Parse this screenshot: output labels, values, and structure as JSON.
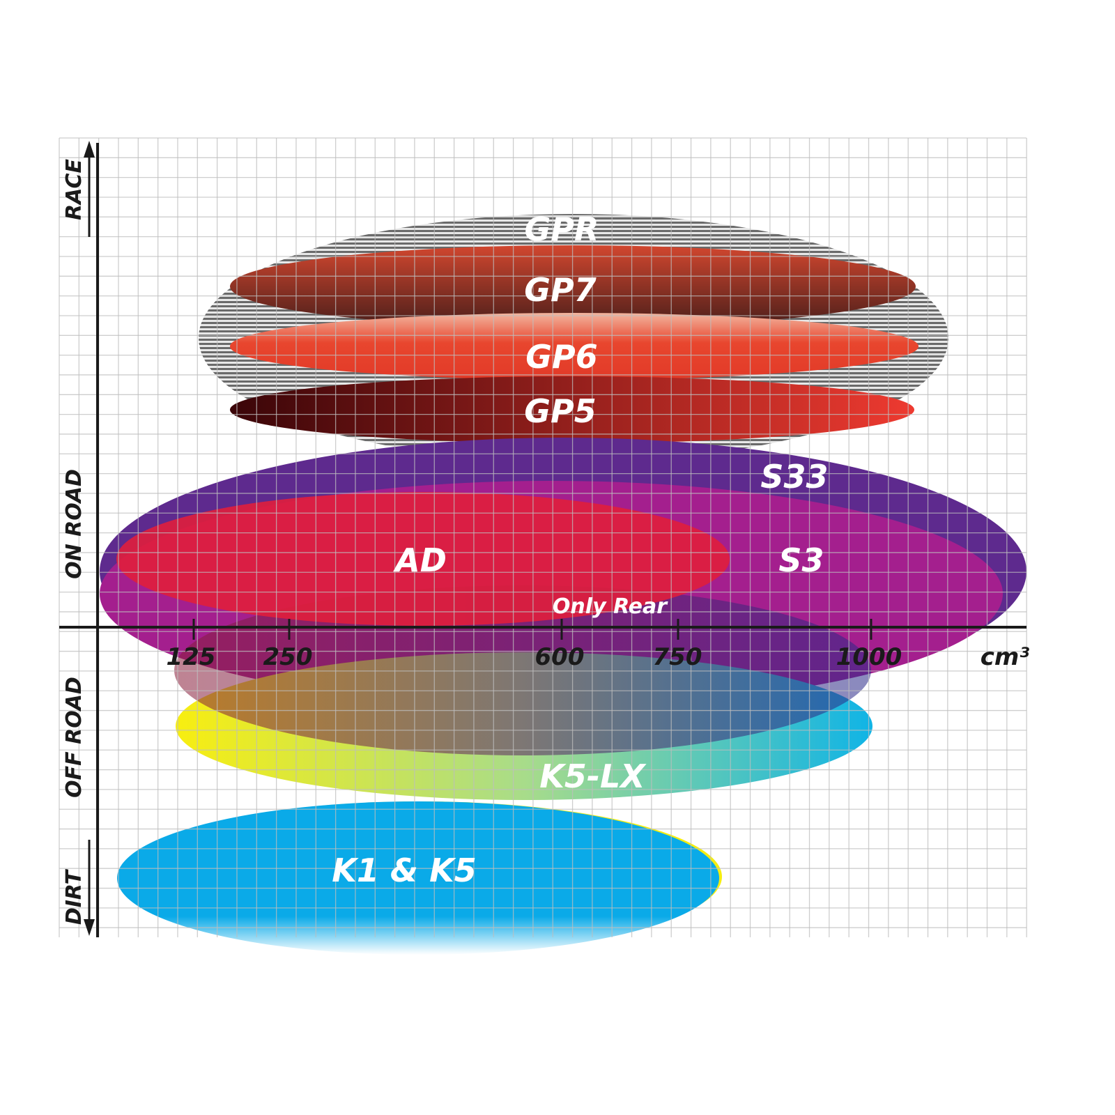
{
  "y_axis_labels": {
    "race": "RACE",
    "on_road": "ON ROAD",
    "off_road": "OFF ROAD",
    "dirt": "DIRT"
  },
  "x_axis": {
    "ticks": [
      "125",
      "250",
      "600",
      "750",
      "1000"
    ],
    "unit": "cm³"
  },
  "products": {
    "gpr": "GPR",
    "gp7": "GP7",
    "gp6": "GP6",
    "gp5": "GP5",
    "s33": "S33",
    "s3": "S3",
    "ad": "AD",
    "only_rear": "Only Rear",
    "k5lx": "K5-LX",
    "k1k5": "K1 & K5"
  },
  "colors": {
    "gpr": "#8a8a8a",
    "gp7": "#c84a32",
    "gp6": "#e8462e",
    "gp5": "#e83a30",
    "s33": "#5e2a8e",
    "s3": "#a41f8e",
    "ad": "#e01e3c",
    "only_rear": "#7a1a50",
    "k5lx_start": "#f5ee1a",
    "k5lx_end": "#10b4e6",
    "k1k5": "#0aaae8"
  }
}
